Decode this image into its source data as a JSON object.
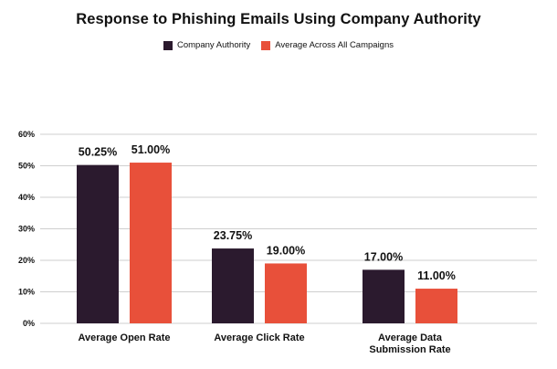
{
  "chart_data": {
    "type": "bar",
    "title": "Response to Phishing Emails Using Company Authority",
    "categories": [
      "Average Open Rate",
      "Average Click Rate",
      "Average Data\nSubmission Rate"
    ],
    "series": [
      {
        "name": "Company Authority",
        "values": [
          50.25,
          23.75,
          17.0
        ],
        "labels": [
          "50.25%",
          "23.75%",
          "17.00%"
        ],
        "color": "#2b1a2e"
      },
      {
        "name": "Average Across All Campaigns",
        "values": [
          51.0,
          19.0,
          11.0
        ],
        "labels": [
          "51.00%",
          "19.00%",
          "11.00%"
        ],
        "color": "#e8503a"
      }
    ],
    "yticks": [
      0,
      10,
      20,
      30,
      40,
      50,
      60
    ],
    "ytick_labels": [
      "0%",
      "10%",
      "20%",
      "30%",
      "40%",
      "50%",
      "60%"
    ],
    "ylim": [
      0,
      60
    ],
    "xlabel": "",
    "ylabel": "",
    "grid": true,
    "legend": "top-center",
    "gridline_color": "#cfcfcf"
  }
}
